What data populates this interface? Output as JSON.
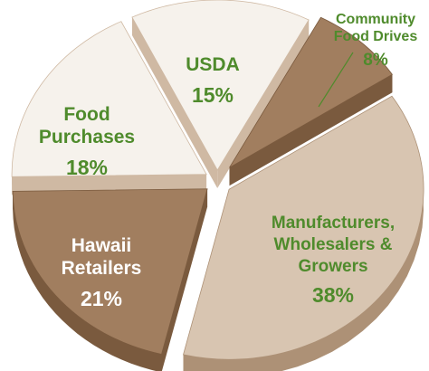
{
  "colors": {
    "green_text": "#4f8b2c",
    "white_text": "#ffffff",
    "dark_brown": "#a17e5f",
    "dark_brown_side": "#7a5a3e",
    "light_tan": "#d8c5b1",
    "light_tan_side": "#ad9176",
    "cream": "#f6f2ec",
    "cream_side": "#cfb9a3",
    "mid_brown": "#b99677",
    "mid_brown_side": "#8c6a4b"
  },
  "chart_data": {
    "type": "pie",
    "title": "",
    "slices": [
      {
        "label_lines": [
          "Community",
          "Food Drives"
        ],
        "value": 8,
        "value_text": "8%",
        "color": "#a17e5f",
        "side_color": "#7a5a3e",
        "text_color": "#4f8b2c"
      },
      {
        "label_lines": [
          "Manufacturers,",
          "Wholesalers &",
          "Growers"
        ],
        "value": 38,
        "value_text": "38%",
        "color": "#d8c5b1",
        "side_color": "#ad9176",
        "text_color": "#4f8b2c"
      },
      {
        "label_lines": [
          "Hawaii",
          "Retailers"
        ],
        "value": 21,
        "value_text": "21%",
        "color": "#a17e5f",
        "side_color": "#7a5a3e",
        "text_color": "#ffffff"
      },
      {
        "label_lines": [
          "Food",
          "Purchases"
        ],
        "value": 18,
        "value_text": "18%",
        "color": "#f6f2ec",
        "side_color": "#cfb9a3",
        "text_color": "#4f8b2c"
      },
      {
        "label_lines": [
          "USDA"
        ],
        "value": 15,
        "value_text": "15%",
        "color": "#f6f2ec",
        "side_color": "#cfb9a3",
        "text_color": "#4f8b2c"
      }
    ]
  }
}
